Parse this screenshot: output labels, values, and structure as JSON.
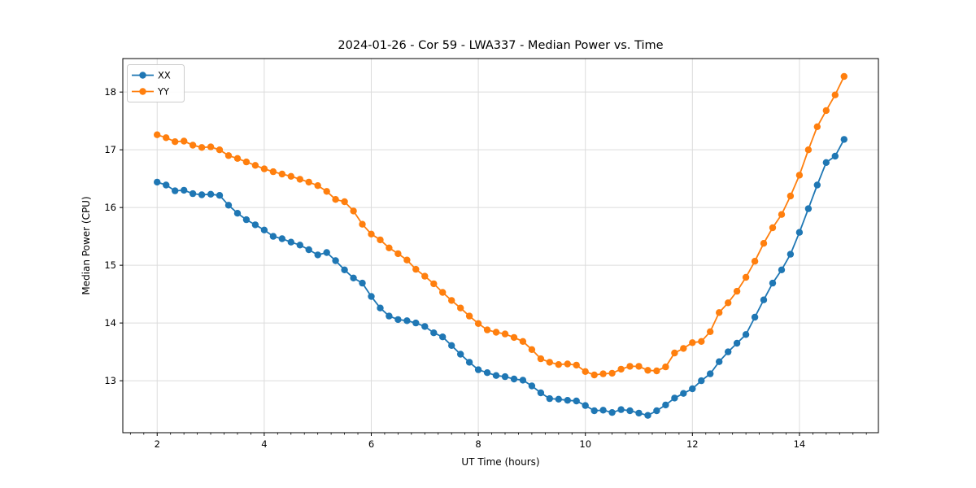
{
  "figure": {
    "title": "2024-01-26 - Cor 59 - LWA337 - Median Power vs. Time",
    "xlabel": "UT Time (hours)",
    "ylabel": "Median Power (CPU)"
  },
  "chart_data": {
    "type": "line",
    "title": "2024-01-26 - Cor 59 - LWA337 - Median Power vs. Time",
    "xlabel": "UT Time (hours)",
    "ylabel": "Median Power (CPU)",
    "xlim": [
      1.358,
      15.475
    ],
    "ylim": [
      12.1,
      18.58
    ],
    "x_ticks": [
      2,
      4,
      6,
      8,
      10,
      12,
      14
    ],
    "y_ticks": [
      13,
      14,
      15,
      16,
      17,
      18
    ],
    "x_minor_tick_step": 0.25,
    "grid": true,
    "grid_color": "#dcdcdc",
    "axis_color": "#000000",
    "legend_position": "upper-left",
    "marker": "circle",
    "x": [
      2.0,
      2.167,
      2.333,
      2.5,
      2.667,
      2.833,
      3.0,
      3.167,
      3.333,
      3.5,
      3.667,
      3.833,
      4.0,
      4.167,
      4.333,
      4.5,
      4.667,
      4.833,
      5.0,
      5.167,
      5.333,
      5.5,
      5.667,
      5.833,
      6.0,
      6.167,
      6.333,
      6.5,
      6.667,
      6.833,
      7.0,
      7.167,
      7.333,
      7.5,
      7.667,
      7.833,
      8.0,
      8.167,
      8.333,
      8.5,
      8.667,
      8.833,
      9.0,
      9.167,
      9.333,
      9.5,
      9.667,
      9.833,
      10.0,
      10.167,
      10.333,
      10.5,
      10.667,
      10.833,
      11.0,
      11.167,
      11.333,
      11.5,
      11.667,
      11.833,
      12.0,
      12.167,
      12.333,
      12.5,
      12.667,
      12.833,
      13.0,
      13.167,
      13.333,
      13.5,
      13.667,
      13.833,
      14.0,
      14.167,
      14.333,
      14.5,
      14.667,
      14.833
    ],
    "series": [
      {
        "name": "XX",
        "color": "#1f77b4",
        "values": [
          16.44,
          16.39,
          16.29,
          16.3,
          16.24,
          16.22,
          16.23,
          16.21,
          16.04,
          15.9,
          15.79,
          15.7,
          15.61,
          15.5,
          15.46,
          15.4,
          15.35,
          15.27,
          15.18,
          15.22,
          15.08,
          14.92,
          14.78,
          14.69,
          14.46,
          14.26,
          14.12,
          14.06,
          14.04,
          14.0,
          13.94,
          13.83,
          13.76,
          13.61,
          13.46,
          13.32,
          13.19,
          13.14,
          13.09,
          13.07,
          13.03,
          13.01,
          12.91,
          12.79,
          12.69,
          12.68,
          12.66,
          12.65,
          12.57,
          12.48,
          12.49,
          12.45,
          12.5,
          12.48,
          12.44,
          12.4,
          12.48,
          12.58,
          12.7,
          12.78,
          12.86,
          13.0,
          13.12,
          13.33,
          13.5,
          13.65,
          13.8,
          14.1,
          14.4,
          14.69,
          14.92,
          15.19,
          15.57,
          15.98,
          16.39,
          16.78,
          16.89,
          17.18
        ]
      },
      {
        "name": "YY",
        "color": "#ff7f0e",
        "values": [
          17.26,
          17.21,
          17.14,
          17.15,
          17.08,
          17.04,
          17.05,
          17.0,
          16.9,
          16.85,
          16.79,
          16.73,
          16.67,
          16.62,
          16.58,
          16.54,
          16.49,
          16.44,
          16.38,
          16.28,
          16.14,
          16.1,
          15.94,
          15.71,
          15.54,
          15.44,
          15.3,
          15.2,
          15.09,
          14.93,
          14.81,
          14.68,
          14.53,
          14.39,
          14.26,
          14.12,
          13.99,
          13.88,
          13.84,
          13.81,
          13.75,
          13.68,
          13.54,
          13.38,
          13.32,
          13.28,
          13.29,
          13.27,
          13.16,
          13.1,
          13.12,
          13.13,
          13.2,
          13.25,
          13.25,
          13.18,
          13.17,
          13.24,
          13.48,
          13.56,
          13.66,
          13.68,
          13.85,
          14.18,
          14.35,
          14.55,
          14.79,
          15.07,
          15.38,
          15.65,
          15.88,
          16.2,
          16.56,
          17.0,
          17.4,
          17.68,
          17.95,
          18.27
        ]
      }
    ]
  }
}
